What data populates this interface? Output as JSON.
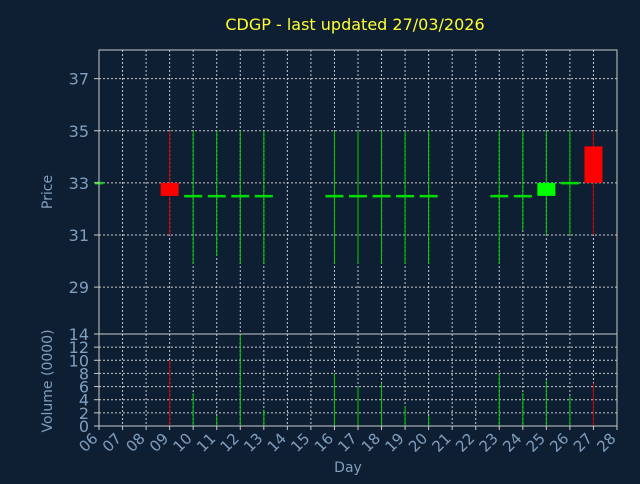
{
  "chart_data": {
    "type": "candlestick",
    "title": "CDGP - last updated 27/03/2026",
    "xlabel": "Day",
    "price_ylabel": "Price",
    "volume_ylabel": "Volume (0000)",
    "price_ylim": [
      27.2,
      38.1
    ],
    "price_yticks": [
      29,
      31,
      33,
      35,
      37
    ],
    "volume_ylim": [
      0,
      14
    ],
    "volume_yticks": [
      0,
      2,
      4,
      6,
      8,
      10,
      12,
      14
    ],
    "xlim": [
      6,
      28
    ],
    "xticks": [
      "06",
      "07",
      "08",
      "09",
      "10",
      "11",
      "12",
      "13",
      "14",
      "15",
      "16",
      "17",
      "18",
      "19",
      "20",
      "21",
      "22",
      "23",
      "24",
      "25",
      "26",
      "27",
      "28"
    ],
    "grid": true,
    "colors": {
      "background": "#0f1f33",
      "title": "#ffff33",
      "axis_text": "#7f9fbf",
      "grid": "#c8c8c8",
      "up": "#00ff00",
      "down": "#ff0000",
      "flat": "#00dd00",
      "up_wick": "#00cc00",
      "down_wick": "#cc0000"
    },
    "series": [
      {
        "day": 6,
        "open": 33.0,
        "high": 33.0,
        "low": 33.0,
        "close": 33.0,
        "volume": 0
      },
      {
        "day": 9,
        "open": 33.0,
        "high": 35.0,
        "low": 31.0,
        "close": 32.5,
        "volume": 10
      },
      {
        "day": 10,
        "open": 32.5,
        "high": 35.0,
        "low": 29.9,
        "close": 32.5,
        "volume": 5
      },
      {
        "day": 11,
        "open": 32.5,
        "high": 35.0,
        "low": 30.2,
        "close": 32.5,
        "volume": 1.5
      },
      {
        "day": 12,
        "open": 32.5,
        "high": 35.0,
        "low": 29.9,
        "close": 32.5,
        "volume": 14
      },
      {
        "day": 13,
        "open": 32.5,
        "high": 35.0,
        "low": 29.9,
        "close": 32.5,
        "volume": 2.5
      },
      {
        "day": 16,
        "open": 32.5,
        "high": 35.0,
        "low": 29.9,
        "close": 32.5,
        "volume": 8
      },
      {
        "day": 17,
        "open": 32.5,
        "high": 35.0,
        "low": 29.9,
        "close": 32.5,
        "volume": 6
      },
      {
        "day": 18,
        "open": 32.5,
        "high": 35.0,
        "low": 29.9,
        "close": 32.5,
        "volume": 6.5
      },
      {
        "day": 19,
        "open": 32.5,
        "high": 35.0,
        "low": 29.9,
        "close": 32.5,
        "volume": 3
      },
      {
        "day": 20,
        "open": 32.5,
        "high": 35.0,
        "low": 29.9,
        "close": 32.5,
        "volume": 1.5
      },
      {
        "day": 23,
        "open": 32.5,
        "high": 35.0,
        "low": 29.9,
        "close": 32.5,
        "volume": 8
      },
      {
        "day": 24,
        "open": 32.5,
        "high": 35.0,
        "low": 31.2,
        "close": 32.5,
        "volume": 5
      },
      {
        "day": 25,
        "open": 32.5,
        "high": 35.0,
        "low": 31.0,
        "close": 33.0,
        "volume": 7
      },
      {
        "day": 26,
        "open": 33.0,
        "high": 35.0,
        "low": 31.0,
        "close": 33.0,
        "volume": 4.5
      },
      {
        "day": 27,
        "open": 34.4,
        "high": 35.0,
        "low": 31.0,
        "close": 33.0,
        "volume": 6.5
      }
    ]
  }
}
